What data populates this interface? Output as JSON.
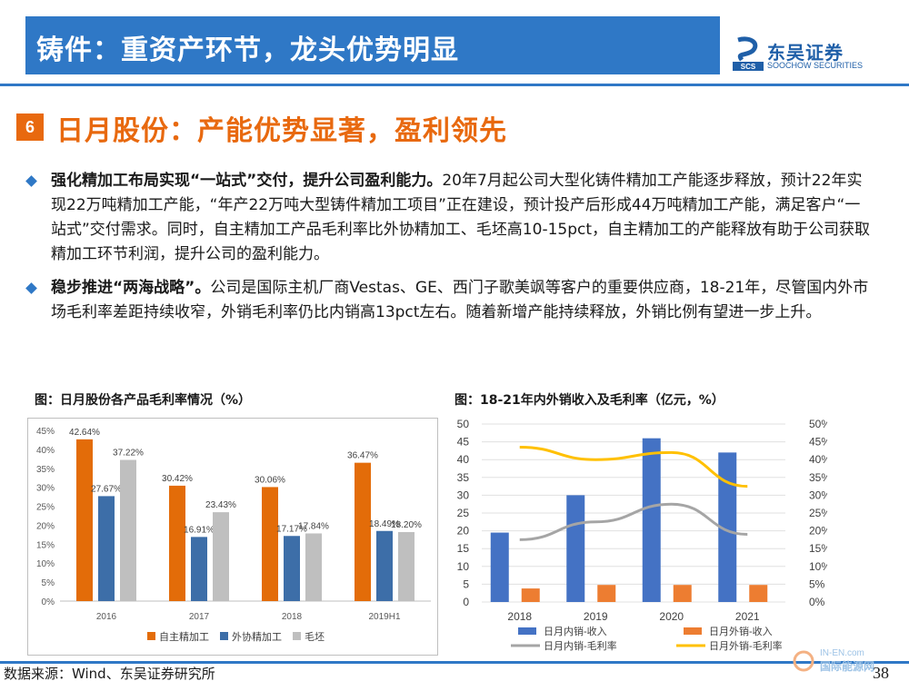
{
  "header": {
    "title": "铸件：重资产环节，龙头优势明显"
  },
  "logo": {
    "cn": "东吴证券",
    "en": "SOOCHOW SECURITIES",
    "mark": "SCS"
  },
  "section": {
    "number": "6",
    "title": "日月股份：产能优势显著，盈利领先"
  },
  "bullets": [
    {
      "lead": "强化精加工布局实现“一站式”交付，提升公司盈利能力。",
      "text": "20年7月起公司大型化铸件精加工产能逐步释放，预计22年实现22万吨精加工产能，“年产22万吨大型铸件精加工项目”正在建设，预计投产后形成44万吨精加工产能，满足客户“一站式”交付需求。同时，自主精加工产品毛利率比外协精加工、毛坯高10-15pct，自主精加工的产能释放有助于公司获取精加工环节利润，提升公司的盈利能力。"
    },
    {
      "lead": "稳步推进“两海战略”。",
      "text": "公司是国际主机厂商Vestas、GE、西门子歌美飒等客户的重要供应商，18-21年，尽管国内外市场毛利率差距持续收窄，外销毛利率仍比内销高13pct左右。随着新增产能持续释放，外销比例有望进一步上升。"
    }
  ],
  "footer": {
    "source": "数据来源：Wind、东吴证券研究所",
    "page": "38"
  },
  "watermark": {
    "top": "IN-EN.com",
    "bottom": "国际能源网"
  },
  "chart_data": [
    {
      "type": "bar",
      "title": "图：日月股份各产品毛利率情况（%）",
      "categories": [
        "2016",
        "2017",
        "2018",
        "2019H1"
      ],
      "ylim": [
        0,
        45
      ],
      "yticks": [
        "0%",
        "5%",
        "10%",
        "15%",
        "20%",
        "25%",
        "30%",
        "35%",
        "40%",
        "45%"
      ],
      "series": [
        {
          "name": "自主精加工",
          "color": "#e36c09",
          "values": [
            42.64,
            30.42,
            30.06,
            36.47
          ],
          "labels": [
            "42.64%",
            "30.42%",
            "30.06%",
            "36.47%"
          ]
        },
        {
          "name": "外协精加工",
          "color": "#3d6ea8",
          "values": [
            27.67,
            16.91,
            17.17,
            18.49
          ],
          "labels": [
            "27.67%",
            "16.91%",
            "17.17%",
            "18.49%"
          ]
        },
        {
          "name": "毛坯",
          "color": "#bfbfbf",
          "values": [
            37.22,
            23.43,
            17.84,
            18.2
          ],
          "labels": [
            "37.22%",
            "23.43%",
            "17.84%",
            "18.20%"
          ]
        }
      ],
      "grid": false,
      "legend": "bottom"
    },
    {
      "type": "bar",
      "title": "图：18-21年内外销收入及毛利率（亿元，%）",
      "categories": [
        "2018",
        "2019",
        "2020",
        "2021"
      ],
      "ylim": [
        0,
        50
      ],
      "y2lim": [
        0,
        50
      ],
      "yticks": [
        "0",
        "5",
        "10",
        "15",
        "20",
        "25",
        "30",
        "35",
        "40",
        "45",
        "50"
      ],
      "y2ticks": [
        "0%",
        "5%",
        "10%",
        "15%",
        "20%",
        "25%",
        "30%",
        "35%",
        "40%",
        "45%",
        "50%"
      ],
      "series": [
        {
          "name": "日月内销-收入",
          "kind": "bar",
          "axis": "left",
          "color": "#4472c4",
          "values": [
            19.5,
            30,
            46,
            42
          ]
        },
        {
          "name": "日月外销-收入",
          "kind": "bar",
          "axis": "left",
          "color": "#ed7d31",
          "values": [
            3.8,
            4.8,
            4.8,
            4.8
          ]
        },
        {
          "name": "日月内销-毛利率",
          "kind": "line",
          "axis": "right",
          "color": "#a5a5a5",
          "values": [
            17.5,
            22.5,
            27.5,
            19
          ]
        },
        {
          "name": "日月外销-毛利率",
          "kind": "line",
          "axis": "right",
          "color": "#ffc000",
          "values": [
            43.5,
            40,
            42,
            32.5
          ]
        }
      ],
      "grid": true,
      "legend": "bottom"
    }
  ]
}
